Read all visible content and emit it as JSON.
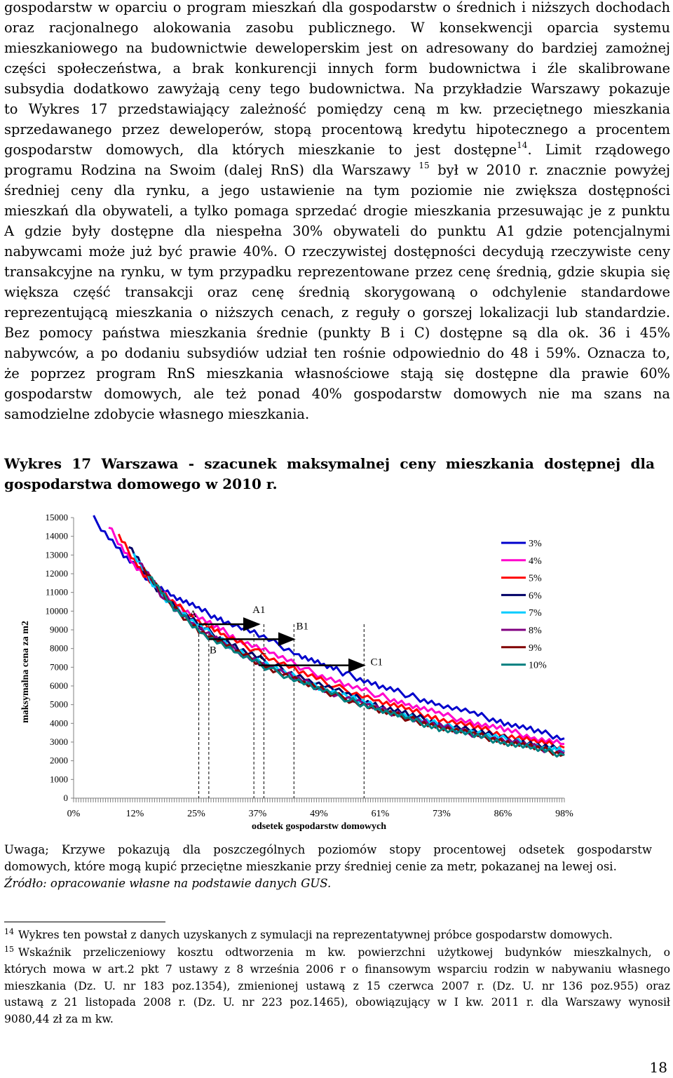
{
  "body": {
    "lines": [
      "gospodarstw w oparciu o program mieszkań dla gospodarstw o średnich i niższych dochodach",
      "oraz racjonalnego alokowania zasobu publicznego. W konsekwencji oparcia systemu",
      "mieszkaniowego na budownictwie deweloperskim jest on adresowany do bardziej zamożnej",
      "części społeczeństwa, a brak konkurencji innych form budownictwa i źle skalibrowane",
      "subsydia dodatkowo zawyżają ceny tego budownictwa. Na przykładzie Warszawy pokazuje",
      "to Wykres 17 przedstawiający zależność pomiędzy ceną m kw. przeciętnego mieszkania",
      "sprzedawanego przez deweloperów, stopą procentową kredytu hipotecznego a procentem",
      "gospodarstw domowych, dla których mieszkanie to jest dostępne",
      "programu Rodzina na Swoim (dalej RnS) dla Warszawy",
      "średniej ceny dla rynku, a jego ustawienie na tym poziomie nie zwiększa dostępności",
      "mieszkań dla obywateli, a tylko pomaga sprzedać drogie mieszkania przesuwając je z punktu",
      "A gdzie były dostępne dla niespełna 30% obywateli do punktu A1 gdzie potencjalnymi",
      "nabywcami może już być prawie 40%. O rzeczywistej dostępności decydują rzeczywiste ceny",
      "transakcyjne na rynku, w tym przypadku reprezentowane przez cenę średnią, gdzie skupia się",
      "większa część transakcji oraz cenę średnią skorygowaną o odchylenie standardowe",
      "reprezentującą mieszkania o niższych cenach, z reguły o gorszej lokalizacji lub standardzie.",
      "Bez pomocy państwa mieszkania średnie (punkty B i C) dostępne są dla ok. 36 i 45%",
      "nabywców, a po dodaniu subsydiów udział ten rośnie odpowiednio do 48 i 59%. Oznacza to,",
      "że poprzez program RnS mieszkania własnościowe stają się dostępne dla prawie 60%",
      "gospodarstw domowych, ale też ponad 40% gospodarstw domowych nie ma szans na",
      "samodzielne zdobycie własnego mieszkania."
    ],
    "line8_sup": "14",
    "line8_tail": ". Limit rządowego",
    "line9_sup": "15",
    "line9_tail": " był w 2010 r. znacznie powyżej"
  },
  "caption": {
    "line1": "Wykres 17 Warszawa - szacunek maksymalnej ceny mieszkania dostępnej dla",
    "line2": "gospodarstwa domowego w 2010 r."
  },
  "chart_data": {
    "type": "line",
    "ylabel": "maksymalna cena za m2",
    "xlabel": "odsetek gospodarstw domowych",
    "yticks": [
      0,
      1000,
      2000,
      3000,
      4000,
      5000,
      6000,
      7000,
      8000,
      9000,
      10000,
      11000,
      12000,
      13000,
      14000,
      15000
    ],
    "xticks": [
      "0%",
      "12%",
      "25%",
      "37%",
      "49%",
      "61%",
      "73%",
      "86%",
      "98%"
    ],
    "ylim": [
      0,
      15000
    ],
    "xlim": [
      0,
      98
    ],
    "legend_position": "right",
    "series": [
      {
        "name": "3%",
        "color": "#0000cc",
        "points": [
          [
            4,
            14950
          ],
          [
            10,
            13000
          ],
          [
            15,
            11700
          ],
          [
            20,
            10800
          ],
          [
            25,
            10100
          ],
          [
            30,
            9500
          ],
          [
            37,
            8700
          ],
          [
            45,
            7700
          ],
          [
            50,
            7100
          ],
          [
            55,
            6600
          ],
          [
            61,
            6000
          ],
          [
            67,
            5500
          ],
          [
            73,
            5000
          ],
          [
            80,
            4500
          ],
          [
            86,
            4050
          ],
          [
            92,
            3600
          ],
          [
            98,
            3200
          ]
        ]
      },
      {
        "name": "4%",
        "color": "#ff00cc",
        "points": [
          [
            7,
            14500
          ],
          [
            12,
            12500
          ],
          [
            17,
            11100
          ],
          [
            22,
            10100
          ],
          [
            28,
            9200
          ],
          [
            33,
            8500
          ],
          [
            40,
            7700
          ],
          [
            47,
            6800
          ],
          [
            54,
            6100
          ],
          [
            61,
            5500
          ],
          [
            67,
            5000
          ],
          [
            73,
            4500
          ],
          [
            80,
            4050
          ],
          [
            86,
            3650
          ],
          [
            92,
            3250
          ],
          [
            98,
            2900
          ]
        ]
      },
      {
        "name": "5%",
        "color": "#ff0000",
        "points": [
          [
            9,
            14000
          ],
          [
            14,
            12000
          ],
          [
            19,
            10600
          ],
          [
            25,
            9500
          ],
          [
            30,
            8700
          ],
          [
            37,
            7800
          ],
          [
            45,
            6800
          ],
          [
            52,
            6000
          ],
          [
            61,
            5200
          ],
          [
            67,
            4700
          ],
          [
            73,
            4250
          ],
          [
            80,
            3800
          ],
          [
            86,
            3400
          ],
          [
            92,
            3050
          ],
          [
            98,
            2700
          ]
        ]
      },
      {
        "name": "6%",
        "color": "#000066",
        "points": [
          [
            11,
            13500
          ],
          [
            16,
            11400
          ],
          [
            21,
            10000
          ],
          [
            27,
            8900
          ],
          [
            33,
            8000
          ],
          [
            40,
            7100
          ],
          [
            47,
            6300
          ],
          [
            55,
            5500
          ],
          [
            61,
            4950
          ],
          [
            67,
            4450
          ],
          [
            73,
            4000
          ],
          [
            80,
            3600
          ],
          [
            86,
            3200
          ],
          [
            92,
            2850
          ],
          [
            98,
            2550
          ]
        ]
      },
      {
        "name": "7%",
        "color": "#00ccff",
        "points": [
          [
            12,
            13000
          ],
          [
            17,
            11000
          ],
          [
            23,
            9600
          ],
          [
            29,
            8500
          ],
          [
            35,
            7600
          ],
          [
            42,
            6700
          ],
          [
            49,
            5950
          ],
          [
            57,
            5200
          ],
          [
            63,
            4650
          ],
          [
            69,
            4200
          ],
          [
            75,
            3800
          ],
          [
            82,
            3400
          ],
          [
            88,
            3050
          ],
          [
            94,
            2700
          ],
          [
            98,
            2500
          ]
        ]
      },
      {
        "name": "8%",
        "color": "#800080",
        "points": [
          [
            13,
            12700
          ],
          [
            18,
            10700
          ],
          [
            24,
            9300
          ],
          [
            30,
            8200
          ],
          [
            37,
            7300
          ],
          [
            44,
            6450
          ],
          [
            51,
            5700
          ],
          [
            59,
            4950
          ],
          [
            65,
            4450
          ],
          [
            71,
            4000
          ],
          [
            77,
            3600
          ],
          [
            84,
            3200
          ],
          [
            90,
            2850
          ],
          [
            98,
            2400
          ]
        ]
      },
      {
        "name": "9%",
        "color": "#800000",
        "points": [
          [
            14,
            12300
          ],
          [
            19,
            10400
          ],
          [
            25,
            9000
          ],
          [
            32,
            7900
          ],
          [
            39,
            7000
          ],
          [
            46,
            6150
          ],
          [
            53,
            5450
          ],
          [
            61,
            4700
          ],
          [
            67,
            4250
          ],
          [
            73,
            3800
          ],
          [
            80,
            3400
          ],
          [
            86,
            3050
          ],
          [
            92,
            2700
          ],
          [
            98,
            2350
          ]
        ]
      },
      {
        "name": "10%",
        "color": "#008080",
        "points": [
          [
            15,
            12000
          ],
          [
            20,
            10100
          ],
          [
            26,
            8800
          ],
          [
            33,
            7700
          ],
          [
            40,
            6800
          ],
          [
            48,
            5950
          ],
          [
            55,
            5250
          ],
          [
            61,
            4750
          ],
          [
            67,
            4200
          ],
          [
            73,
            3750
          ],
          [
            80,
            3350
          ],
          [
            86,
            3000
          ],
          [
            92,
            2650
          ],
          [
            98,
            2300
          ]
        ]
      }
    ],
    "annotations": [
      {
        "label": "A",
        "x": 25,
        "y": 9300
      },
      {
        "label": "A1",
        "x": 37,
        "y": 9300
      },
      {
        "label": "B",
        "x": 27,
        "y": 8500
      },
      {
        "label": "B1",
        "x": 44,
        "y": 8500
      },
      {
        "label": "C",
        "x": 37,
        "y": 7100
      },
      {
        "label": "C1",
        "x": 58,
        "y": 7100
      }
    ],
    "arrows": [
      {
        "from": [
          25,
          9300
        ],
        "to": [
          37,
          9300
        ]
      },
      {
        "from": [
          27,
          8500
        ],
        "to": [
          44,
          8500
        ]
      },
      {
        "from": [
          37,
          7100
        ],
        "to": [
          58,
          7100
        ]
      }
    ],
    "drop_lines_x": [
      25,
      27,
      36,
      38,
      44,
      58
    ]
  },
  "note": {
    "line1": "Uwaga; Krzywe pokazują dla poszczególnych poziomów stopy procentowej odsetek gospodarstw",
    "line2": "domowych, które mogą kupić przeciętne mieszkanie przy średniej cenie za metr, pokazanej na lewej osi.",
    "source": "Źródło: opracowanie własne na podstawie danych GUS."
  },
  "footnotes": [
    {
      "num": "14",
      "text": "Wykres ten powstał z danych uzyskanych z symulacji na reprezentatywnej próbce gospodarstw domowych."
    },
    {
      "num": "15",
      "text": "Wskaźnik przeliczeniowy kosztu odtworzenia m kw. powierzchni użytkowej budynków mieszkalnych, o"
    }
  ],
  "footnote15_rest": [
    "których mowa w art.2 pkt 7 ustawy z 8 września 2006 r o finansowym wsparciu rodzin w nabywaniu własnego",
    "mieszkania (Dz. U. nr 183 poz.1354), zmienionej ustawą z 15 czerwca 2007 r. (Dz. U. nr 136 poz.955) oraz",
    "ustawą z 21 listopada 2008 r. (Dz. U. nr 223 poz.1465), obowiązujący w I kw. 2011 r. dla Warszawy wynosił",
    "9080,44 zł za m kw."
  ],
  "page_number": "18"
}
